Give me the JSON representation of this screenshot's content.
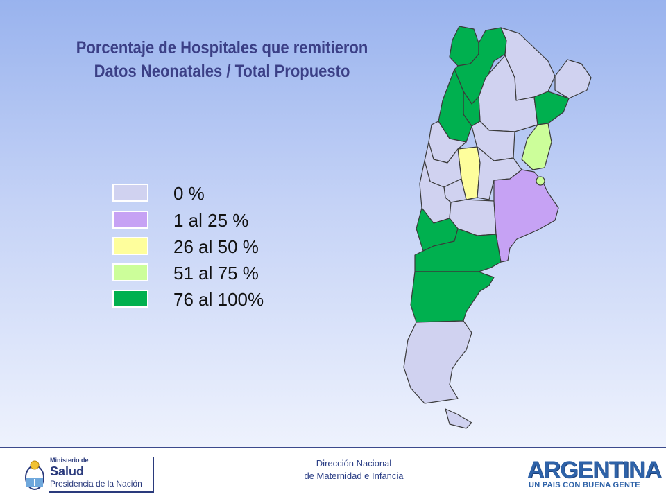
{
  "title": {
    "line1": "Porcentaje de Hospitales que remitieron",
    "line2": "Datos Neonatales / Total Propuesto"
  },
  "legend": [
    {
      "label": "0 %",
      "color": "#d0d2f0"
    },
    {
      "label": "1 al 25 %",
      "color": "#c6a2f4"
    },
    {
      "label": "26 al 50 %",
      "color": "#fefe9c"
    },
    {
      "label": "51 al 75 %",
      "color": "#ccfe9a"
    },
    {
      "label": "76 al 100%",
      "color": "#00b04f"
    }
  ],
  "colors": {
    "title": "#3b3f86",
    "map_border": "#3a3a3a",
    "background_top": "#99b3ee",
    "background_bottom": "#eef2fd"
  },
  "footer": {
    "line1": "Dirección Nacional",
    "line2": "de Maternidad e Infancia",
    "ministry": {
      "line1": "Ministerio de",
      "line2": "Salud",
      "line3": "Presidencia de la Nación"
    },
    "brand": {
      "word": "ARGENTINA",
      "tagline": "UN PAIS CON BUENA GENTE"
    }
  }
}
